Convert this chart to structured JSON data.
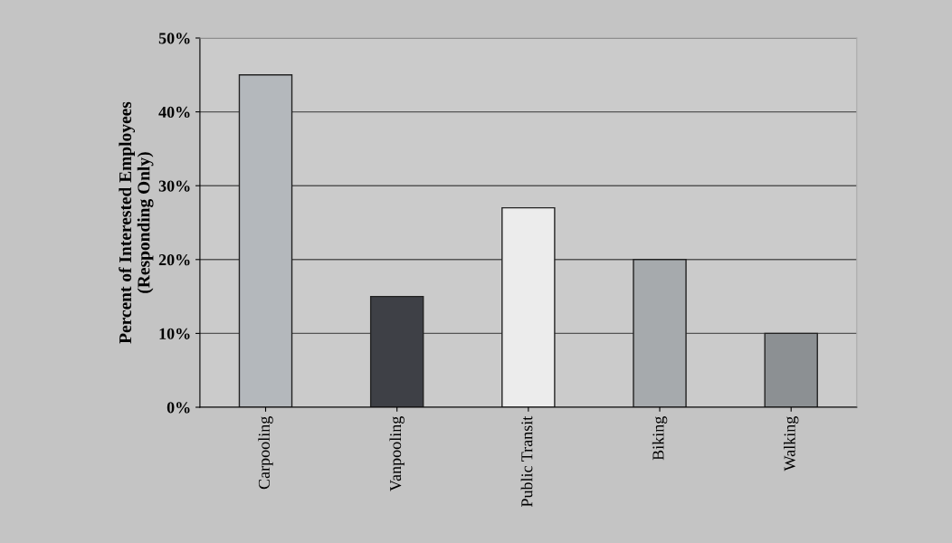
{
  "chart_data": {
    "type": "bar",
    "ylabel": "Percent of Interested Employees\n(Responding Only)",
    "categories": [
      "Carpooling",
      "Vanpooling",
      "Public Transit",
      "Biking",
      "Walking"
    ],
    "values": [
      45,
      15,
      27,
      20,
      10
    ],
    "colors": [
      "#b4b8bc",
      "#3e4046",
      "#ececec",
      "#a6aaad",
      "#8c9093"
    ],
    "ylim": [
      0,
      50
    ],
    "yticks": [
      {
        "value": 0,
        "label": "0%"
      },
      {
        "value": 10,
        "label": "10%"
      },
      {
        "value": 20,
        "label": "20%"
      },
      {
        "value": 30,
        "label": "30%"
      },
      {
        "value": 40,
        "label": "40%"
      },
      {
        "value": 50,
        "label": "50%"
      }
    ],
    "grid": "y"
  }
}
